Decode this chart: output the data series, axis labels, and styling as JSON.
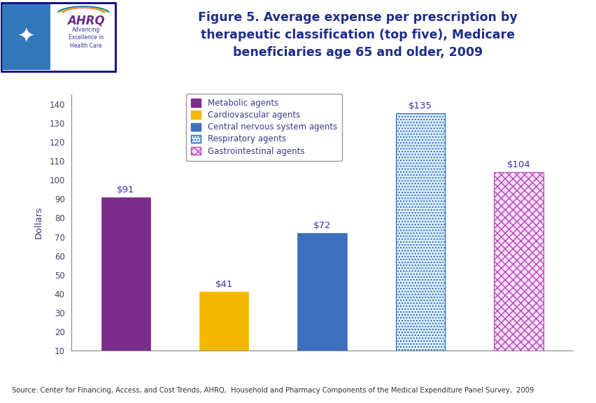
{
  "title": "Figure 5. Average expense per prescription by\ntherapeutic classification (top five), Medicare\nbeneficiaries age 65 and older, 2009",
  "categories": [
    "Metabolic agents",
    "Cardiovascular agents",
    "Central nervous system agents",
    "Respiratory agents",
    "Gastrointestinal agents"
  ],
  "values": [
    91,
    41,
    72,
    135,
    104
  ],
  "bar_colors_solid": [
    "#7B2D8B",
    "#F5B800",
    "#3D6FBF",
    null,
    null
  ],
  "ylabel": "Dollars",
  "ylim_min": 10,
  "ylim_max": 145,
  "yticks": [
    10,
    20,
    30,
    40,
    50,
    60,
    70,
    80,
    90,
    100,
    110,
    120,
    130,
    140
  ],
  "value_labels": [
    "$91",
    "$41",
    "$72",
    "$135",
    "$104"
  ],
  "source_text": "Source: Center for Financing, Access, and Cost Trends, AHRQ,  Household and Pharmacy Components of the Medical Expenditure Panel Survey,  2009",
  "title_color": "#1F2D8A",
  "label_color": "#4B0082",
  "bar_label_color": "#3333AA",
  "axis_label_color": "#3B3B8C",
  "tick_color": "#444466",
  "background_color": "#FFFFFF",
  "chart_bg_color": "#FFFFFF",
  "header_bg": "#FFFFFF",
  "border_blue": "#00008B",
  "border_light_blue": "#4488CC",
  "respiratory_face": "#DDEEFF",
  "respiratory_edge": "#2266BB",
  "gastro_face": "#F5E0F5",
  "gastro_edge": "#BB44BB",
  "legend_text_color": "#3B3B8C"
}
